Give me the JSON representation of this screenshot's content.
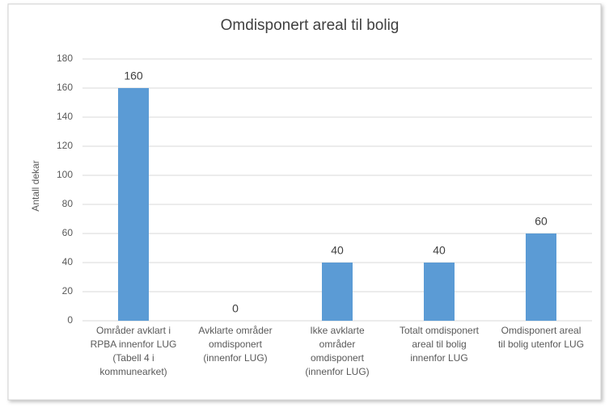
{
  "chart_data": {
    "type": "bar",
    "title": "Omdisponert areal til bolig",
    "y_label": "Antall dekar",
    "categories": [
      "Områder avklart i\nRPBA innenfor LUG\n(Tabell 4 i\nkommunearket)",
      "Avklarte områder\nomdisponert\n(innenfor LUG)",
      "Ikke avklarte\nområder\nomdisponert\n(innenfor LUG)",
      "Totalt omdisponert\nareal til bolig\ninnenfor LUG",
      "Omdisponert areal\ntil bolig utenfor LUG"
    ],
    "values": [
      160,
      0,
      40,
      40,
      60
    ],
    "color": "#5b9bd5",
    "ylim": [
      0,
      180
    ],
    "yticks": [
      0,
      20,
      40,
      60,
      80,
      100,
      120,
      140,
      160,
      180
    ],
    "grid": true
  }
}
